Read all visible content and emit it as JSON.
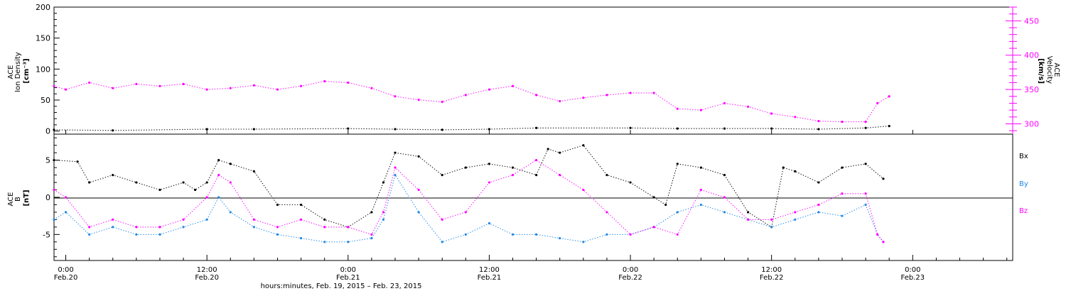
{
  "figure": {
    "xlabel": "hours:minutes, Feb. 19, 2015 – Feb. 23, 2015",
    "x_ticks": [
      {
        "time": "0:00",
        "date": "Feb.20",
        "hour": 24
      },
      {
        "time": "12:00",
        "date": "Feb.20",
        "hour": 36
      },
      {
        "time": "0:00",
        "date": "Feb.21",
        "hour": 48
      },
      {
        "time": "12:00",
        "date": "Feb.21",
        "hour": 60
      },
      {
        "time": "0:00",
        "date": "Feb.22",
        "hour": 72
      },
      {
        "time": "12:00",
        "date": "Feb.22",
        "hour": 84
      },
      {
        "time": "0:00",
        "date": "Feb.23",
        "hour": 96
      }
    ],
    "xlim_hours": [
      23,
      104.5
    ]
  },
  "chart_data": [
    {
      "type": "scatter",
      "panel": "top",
      "ylabel_left_lines": [
        "ACE",
        "Ion Density",
        "[cm⁻³]"
      ],
      "ylabel_right_lines": [
        "ACE",
        "Velocity",
        "[km/s]"
      ],
      "ylim_left": [
        -5,
        200
      ],
      "yticks_left": [
        0,
        50,
        100,
        150,
        200
      ],
      "ylim_right": [
        285,
        470
      ],
      "yticks_right": [
        300,
        350,
        400,
        450
      ],
      "series": [
        {
          "axis": "left",
          "color": "#000000",
          "x_hours": [
            23,
            28,
            36,
            40,
            48,
            52,
            56,
            60,
            64,
            72,
            76,
            80,
            84,
            88,
            92,
            94
          ],
          "y": [
            2,
            1,
            3,
            3,
            4,
            3,
            2,
            3,
            5,
            5,
            4,
            4,
            4,
            3,
            5,
            8
          ]
        },
        {
          "axis": "right",
          "color": "#ff00ff",
          "x_hours": [
            23,
            24,
            26,
            28,
            30,
            32,
            34,
            36,
            38,
            40,
            42,
            44,
            46,
            48,
            50,
            52,
            54,
            56,
            58,
            60,
            62,
            64,
            66,
            68,
            70,
            72,
            74,
            76,
            78,
            80,
            82,
            84,
            86,
            88,
            90,
            92,
            93,
            94
          ],
          "y": [
            355,
            350,
            360,
            352,
            358,
            355,
            358,
            350,
            352,
            356,
            350,
            355,
            362,
            360,
            352,
            340,
            335,
            332,
            342,
            350,
            355,
            342,
            333,
            338,
            342,
            345,
            345,
            322,
            320,
            330,
            325,
            315,
            310,
            304,
            303,
            303,
            330,
            340
          ]
        }
      ]
    },
    {
      "type": "scatter",
      "panel": "bottom",
      "ylabel_left_lines": [
        "ACE",
        "B",
        "[nT]"
      ],
      "ylim": [
        -8.5,
        8.5
      ],
      "yticks": [
        -5,
        0,
        5
      ],
      "legend": [
        "Bx",
        "By",
        "Bz"
      ],
      "series": [
        {
          "name": "Bx",
          "color": "#000000",
          "x_hours": [
            23,
            25,
            26,
            28,
            30,
            32,
            34,
            35,
            36,
            37,
            38,
            40,
            42,
            44,
            46,
            48,
            50,
            51,
            52,
            54,
            56,
            58,
            60,
            62,
            64,
            65,
            66,
            68,
            70,
            72,
            74,
            75,
            76,
            78,
            80,
            82,
            84,
            85,
            86,
            88,
            90,
            92,
            93.5
          ],
          "y": [
            5,
            4.8,
            2,
            3,
            2,
            1,
            2,
            1,
            2,
            5,
            4.5,
            3.5,
            -1,
            -1,
            -3,
            -4,
            -2,
            2,
            6,
            5.5,
            3,
            4,
            4.5,
            4,
            3,
            6.5,
            6,
            7,
            3,
            2,
            0,
            -1,
            4.5,
            4,
            3,
            -2,
            -4,
            4,
            3.5,
            2,
            4,
            4.5,
            2.5
          ]
        },
        {
          "name": "By",
          "color": "#1e88e5",
          "x_hours": [
            23,
            24,
            26,
            28,
            30,
            32,
            34,
            36,
            37,
            38,
            40,
            42,
            44,
            46,
            48,
            50,
            51,
            52,
            54,
            56,
            58,
            60,
            62,
            64,
            66,
            68,
            70,
            72,
            74,
            76,
            78,
            80,
            82,
            84,
            86,
            88,
            90,
            92,
            93,
            93.5
          ],
          "y": [
            -3,
            -2,
            -5,
            -4,
            -5,
            -5,
            -4,
            -3,
            0,
            -2,
            -4,
            -5,
            -5.5,
            -6,
            -6,
            -5.5,
            -3,
            3,
            -2,
            -6,
            -5,
            -3.5,
            -5,
            -5,
            -5.5,
            -6,
            -5,
            -5,
            -4,
            -2,
            -1,
            -2,
            -3,
            -4,
            -3,
            -2,
            -2.5,
            -1,
            -5,
            -6
          ]
        },
        {
          "name": "Bz",
          "color": "#ff00ff",
          "x_hours": [
            23,
            24,
            26,
            28,
            30,
            32,
            34,
            36,
            37,
            38,
            40,
            42,
            44,
            46,
            48,
            50,
            51,
            52,
            54,
            56,
            58,
            60,
            62,
            64,
            66,
            68,
            70,
            72,
            74,
            76,
            78,
            80,
            82,
            84,
            86,
            88,
            90,
            92,
            93,
            93.5
          ],
          "y": [
            1,
            0,
            -4,
            -3,
            -4,
            -4,
            -3,
            0,
            3,
            2,
            -3,
            -4,
            -3,
            -4,
            -4,
            -5,
            -2,
            4,
            1,
            -3,
            -2,
            2,
            3,
            5,
            3,
            1,
            -2,
            -5,
            -4,
            -5,
            1,
            0,
            -3,
            -3,
            -2,
            -1,
            0.5,
            0.5,
            -5,
            -6
          ]
        }
      ]
    }
  ]
}
